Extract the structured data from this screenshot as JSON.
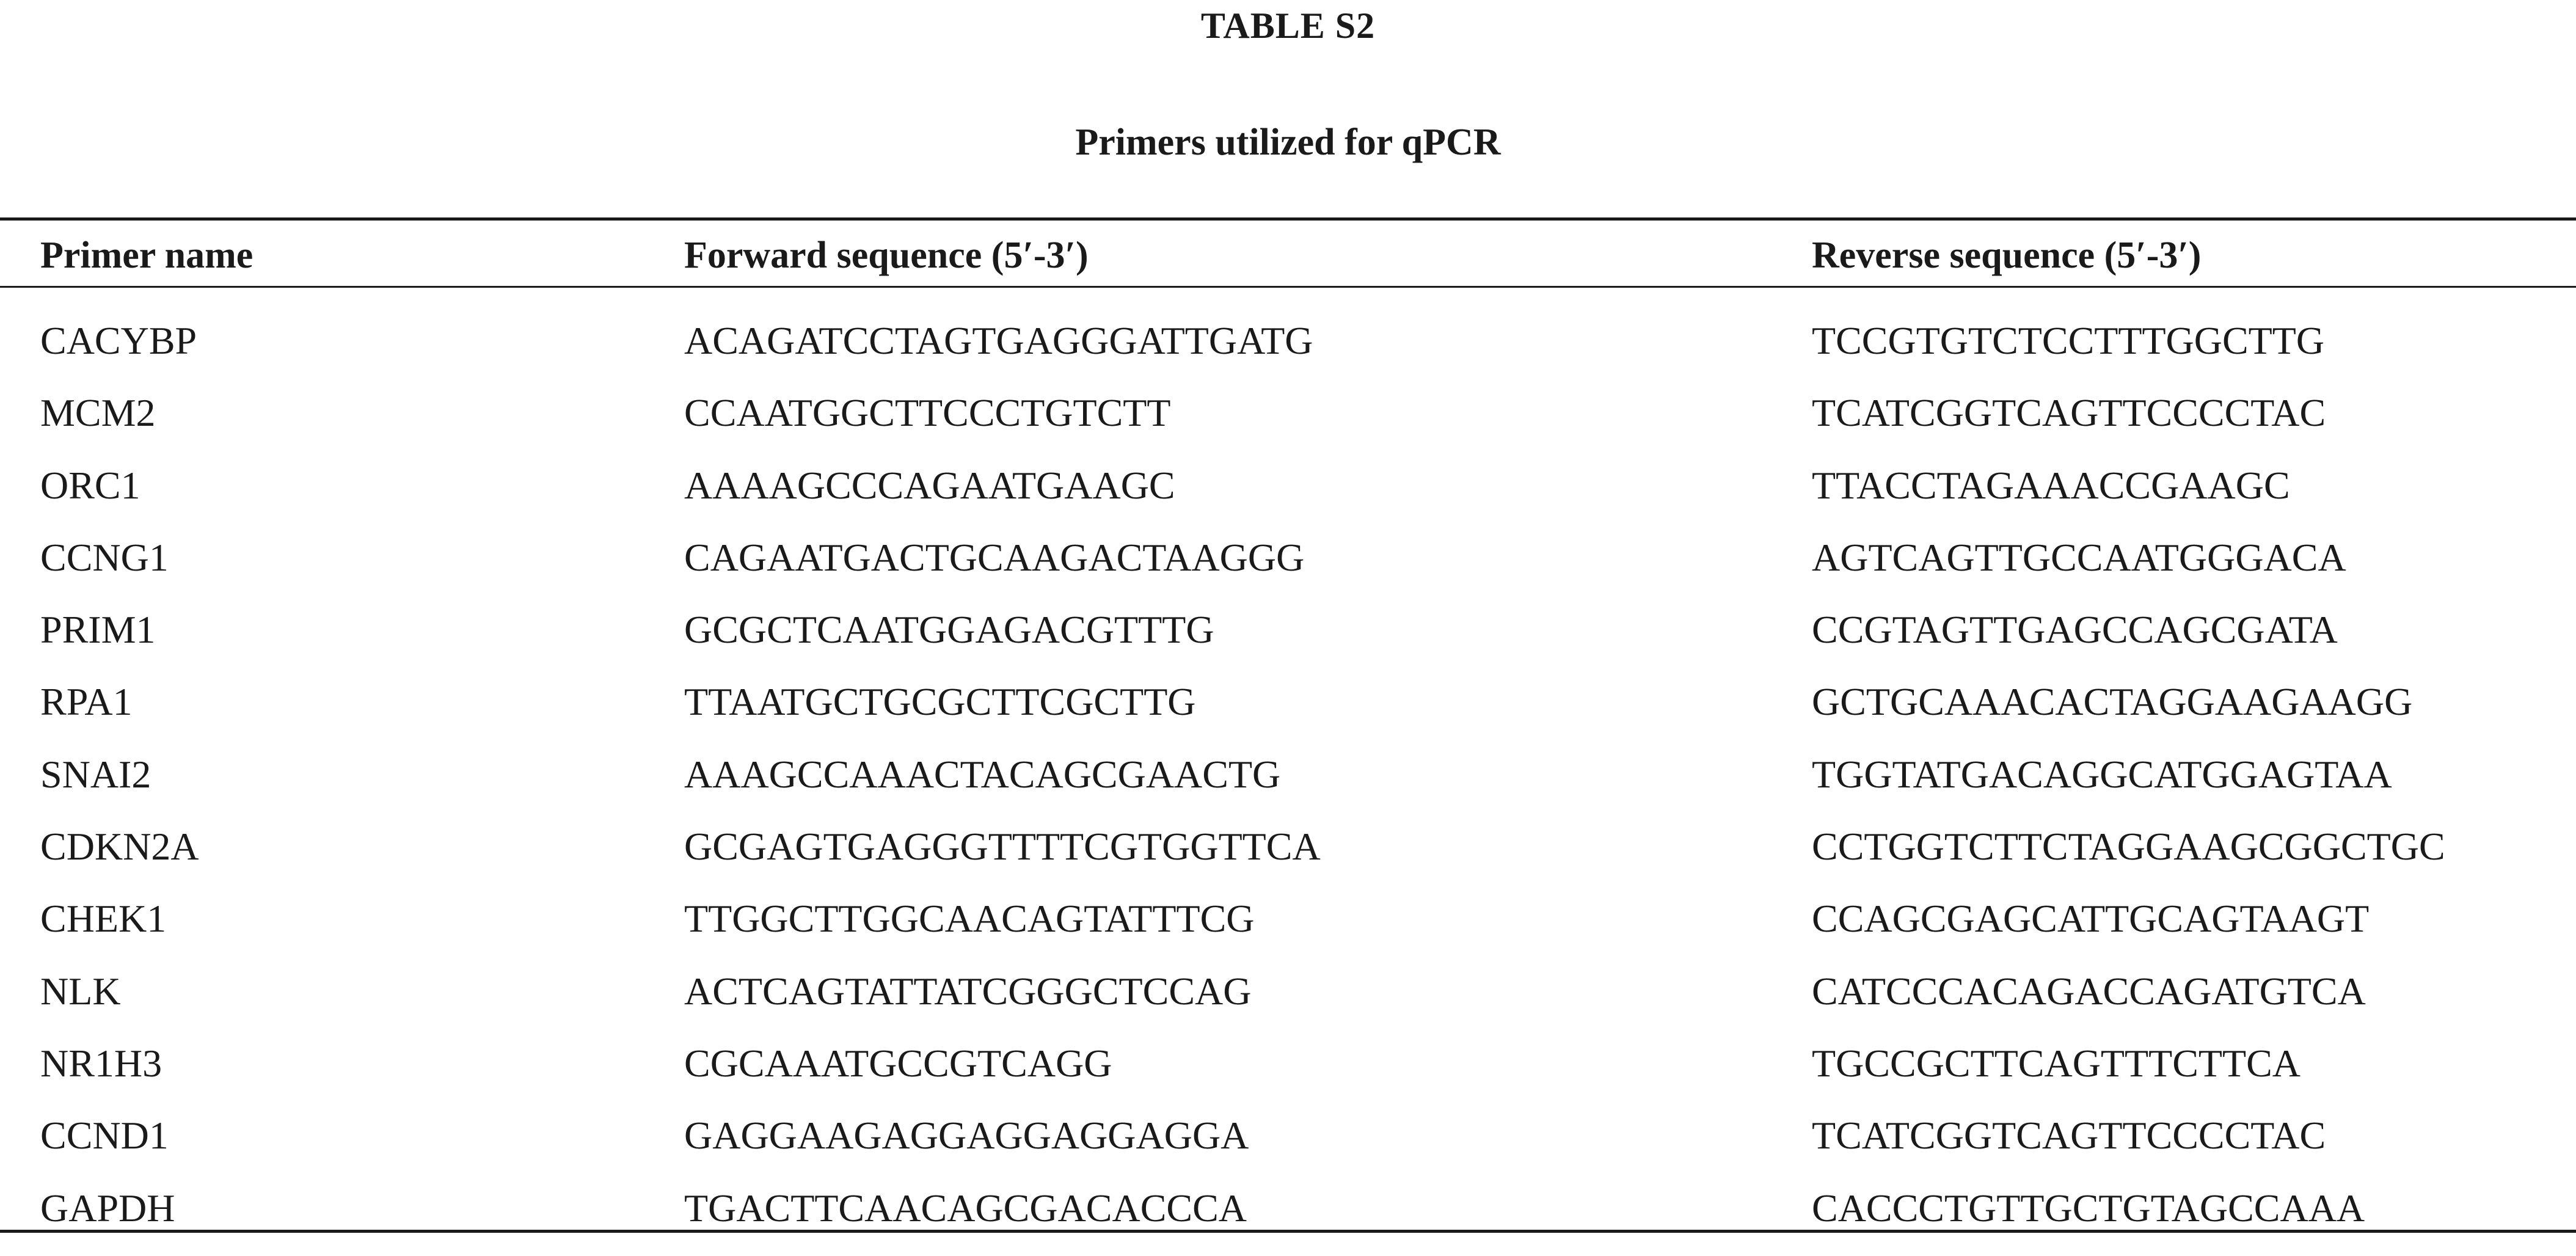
{
  "table": {
    "label": "TABLE S2",
    "caption": "Primers utilized for qPCR",
    "headers": {
      "name": "Primer name",
      "forward": "Forward sequence (5′-3′)",
      "reverse": "Reverse sequence (5′-3′)"
    },
    "rows": [
      {
        "name": "CACYBP",
        "forward": "ACAGATCCTAGTGAGGGATTGATG",
        "reverse": "TCCGTGTCTCCTTTGGCTTG"
      },
      {
        "name": "MCM2",
        "forward": "CCAATGGCTTCCCTGTCTT",
        "reverse": "TCATCGGTCAGTTCCCCTAC"
      },
      {
        "name": "ORC1",
        "forward": "AAAAGCCCAGAATGAAGC",
        "reverse": "TTACCTAGAAACCGAAGC"
      },
      {
        "name": "CCNG1",
        "forward": "CAGAATGACTGCAAGACTAAGGG",
        "reverse": "AGTCAGTTGCCAATGGGACA"
      },
      {
        "name": "PRIM1",
        "forward": "GCGCTCAATGGAGACGTTTG",
        "reverse": "CCGTAGTTGAGCCAGCGATA"
      },
      {
        "name": "RPA1",
        "forward": "TTAATGCTGCGCTTCGCTTG",
        "reverse": "GCTGCAAACACTAGGAAGAAGG"
      },
      {
        "name": "SNAI2",
        "forward": "AAAGCCAAACTACAGCGAACTG",
        "reverse": "TGGTATGACAGGCATGGAGTAA"
      },
      {
        "name": "CDKN2A",
        "forward": "GCGAGTGAGGGTTTTCGTGGTTCA",
        "reverse": "CCTGGTCTTCTAGGAAGCGGCTGC"
      },
      {
        "name": "CHEK1",
        "forward": "TTGGCTTGGCAACAGTATTTCG",
        "reverse": "CCAGCGAGCATTGCAGTAAGT"
      },
      {
        "name": "NLK",
        "forward": "ACTCAGTATTATCGGGCTCCAG",
        "reverse": "CATCCCACAGACCAGATGTCA"
      },
      {
        "name": "NR1H3",
        "forward": "CGCAAATGCCGTCAGG",
        "reverse": "TGCCGCTTCAGTTTCTTCA"
      },
      {
        "name": "CCND1",
        "forward": "GAGGAAGAGGAGGAGGAGGA",
        "reverse": "TCATCGGTCAGTTCCCCTAC"
      },
      {
        "name": "GAPDH",
        "forward": "TGACTTCAACAGCGACACCCA",
        "reverse": "CACCCTGTTGCTGTAGCCAAA"
      }
    ]
  }
}
